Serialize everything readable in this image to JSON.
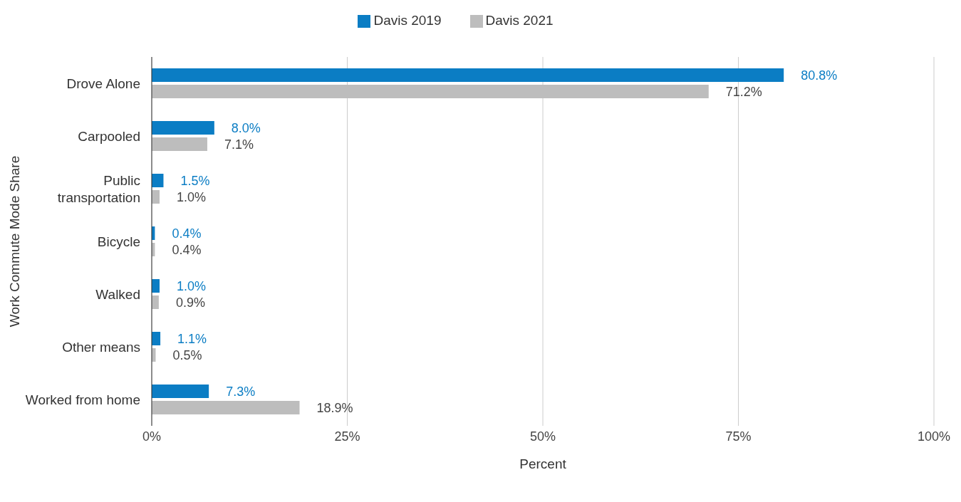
{
  "chart_data": {
    "type": "bar",
    "orientation": "horizontal",
    "ylabel": "Work Commute Mode Share",
    "xlabel": "Percent",
    "categories": [
      "Drove Alone",
      "Carpooled",
      "Public transportation",
      "Bicycle",
      "Walked",
      "Other means",
      "Worked from home"
    ],
    "series": [
      {
        "name": "Davis 2019",
        "color": "#0b7dc4",
        "values": [
          80.8,
          8.0,
          1.5,
          0.4,
          1.0,
          1.1,
          7.3
        ],
        "value_labels": [
          "80.8%",
          "8.0%",
          "1.5%",
          "0.4%",
          "1.0%",
          "1.1%",
          "7.3%"
        ]
      },
      {
        "name": "Davis 2021",
        "color": "#bdbdbd",
        "values": [
          71.2,
          7.1,
          1.0,
          0.4,
          0.9,
          0.5,
          18.9
        ],
        "value_labels": [
          "71.2%",
          "7.1%",
          "1.0%",
          "0.4%",
          "0.9%",
          "0.5%",
          "18.9%"
        ]
      }
    ],
    "xlim": [
      0,
      100
    ],
    "xticks": [
      {
        "value": 0,
        "label": "0%"
      },
      {
        "value": 25,
        "label": "25%"
      },
      {
        "value": 50,
        "label": "50%"
      },
      {
        "value": 75,
        "label": "75%"
      },
      {
        "value": 100,
        "label": "100%"
      }
    ],
    "grid": "x",
    "legend": "top"
  }
}
